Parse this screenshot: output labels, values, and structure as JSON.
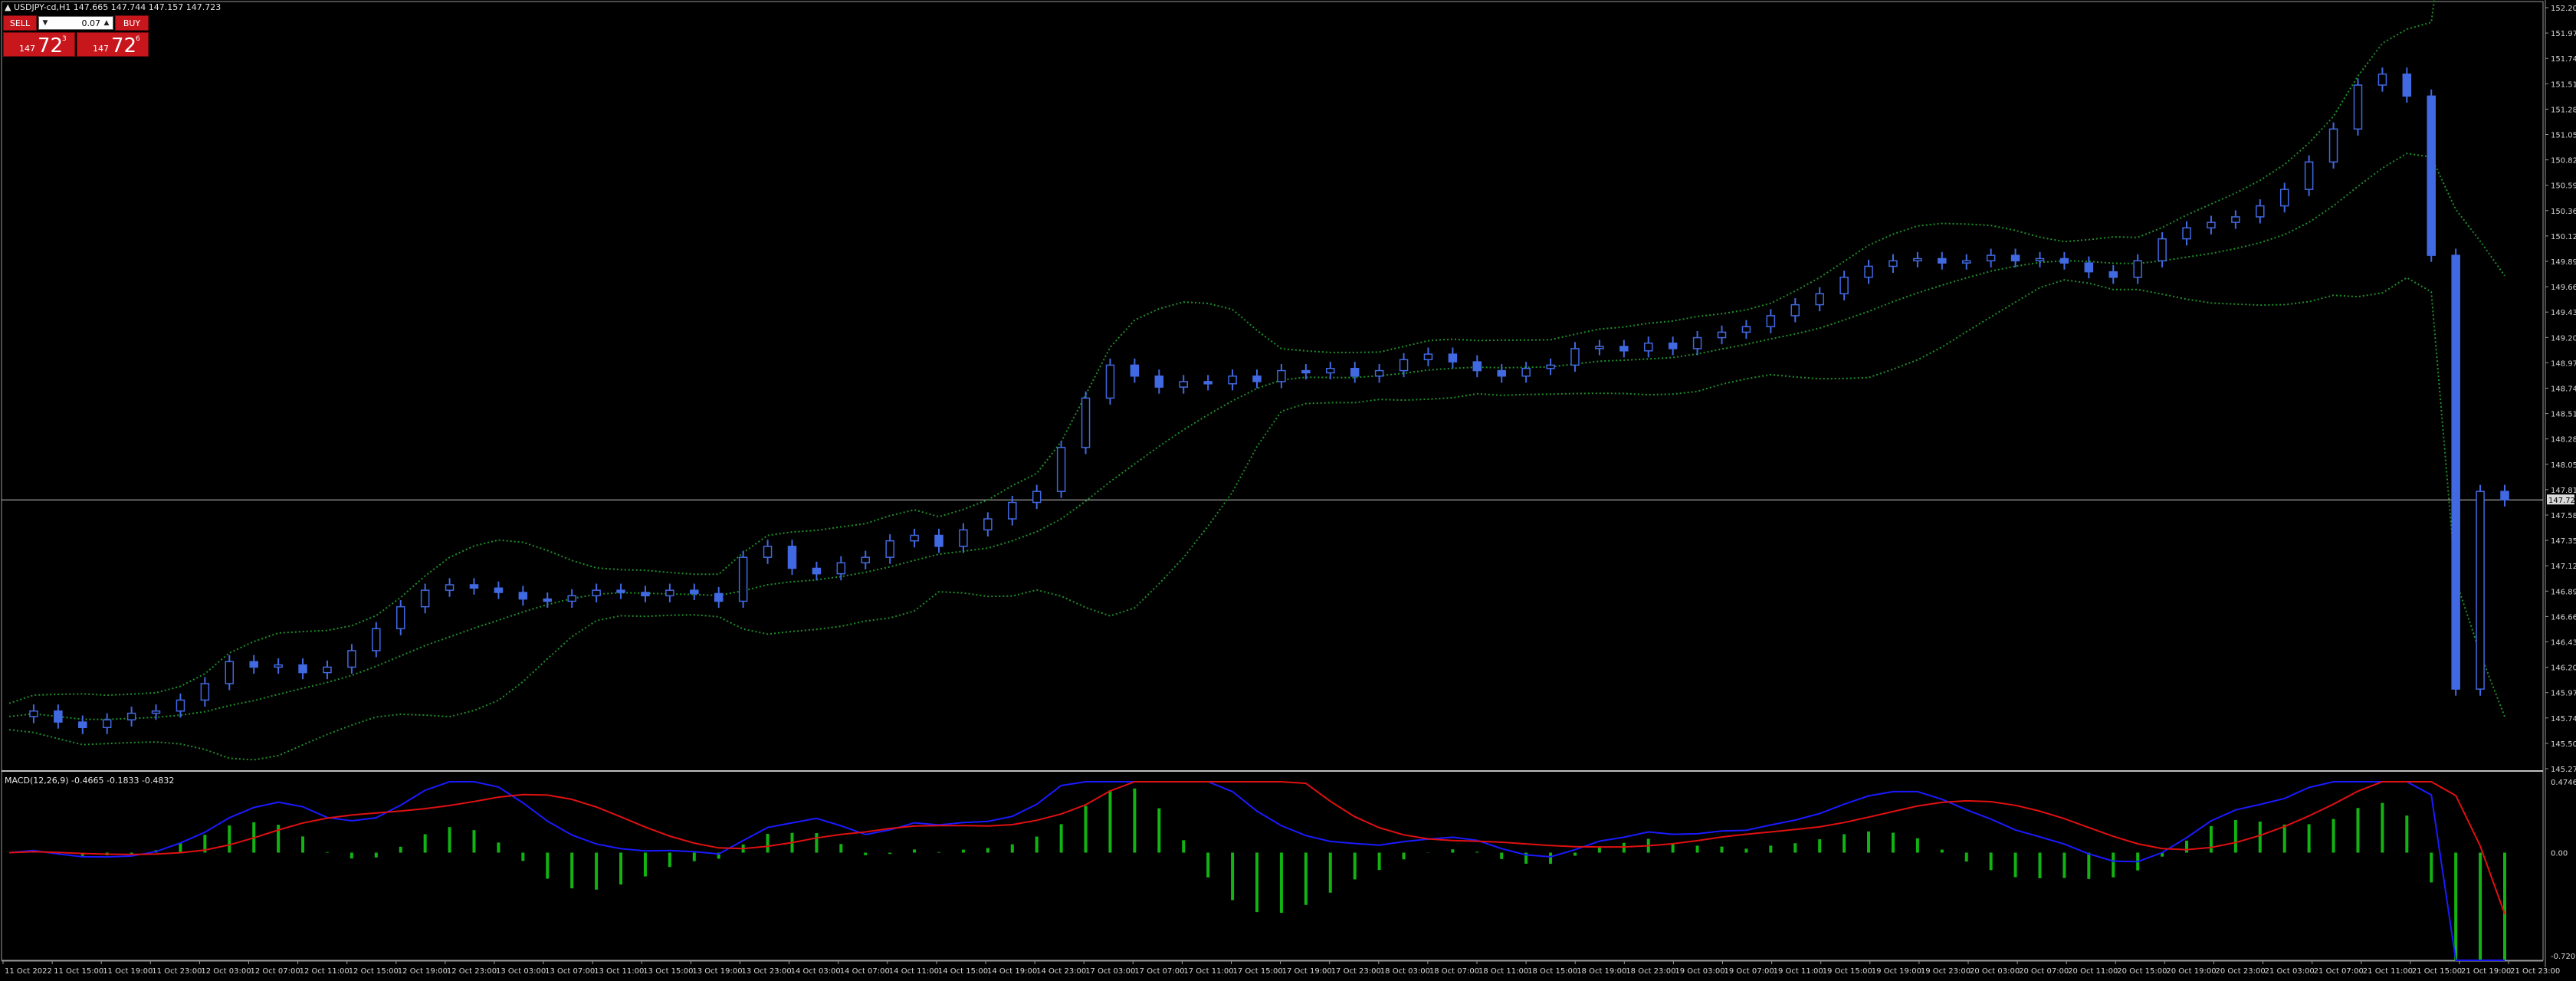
{
  "header": {
    "symbol_label": "▲ USDJPY-cd,H1  147.665 147.744 147.157 147.723"
  },
  "trade_panel": {
    "sell_label": "SELL",
    "buy_label": "BUY",
    "volume_value": "0.07",
    "bid_small": "147",
    "bid_big": "72",
    "bid_sup": "3",
    "ask_small": "147",
    "ask_big": "72",
    "ask_sup": "6"
  },
  "price_axis": {
    "labels": [
      "152.205",
      "151.975",
      "151.745",
      "151.515",
      "151.280",
      "151.050",
      "150.820",
      "150.590",
      "150.360",
      "150.125",
      "149.895",
      "149.665",
      "149.435",
      "149.205",
      "148.970",
      "148.740",
      "148.510",
      "148.280",
      "148.050",
      "147.815",
      "147.585",
      "147.355",
      "147.125",
      "146.895",
      "146.660",
      "146.430",
      "146.200",
      "145.970",
      "145.740",
      "145.505",
      "145.275"
    ],
    "current_price": "147.723"
  },
  "macd": {
    "label": "MACD(12,26,9) -0.4665 -0.1833 -0.4832",
    "axis_labels": [
      "0.4746",
      "0.00",
      "-0.7209"
    ]
  },
  "time_axis": {
    "labels": [
      "11 Oct 2022",
      "11 Oct 15:00",
      "11 Oct 19:00",
      "11 Oct 23:00",
      "12 Oct 03:00",
      "12 Oct 07:00",
      "12 Oct 11:00",
      "12 Oct 15:00",
      "12 Oct 19:00",
      "12 Oct 23:00",
      "13 Oct 03:00",
      "13 Oct 07:00",
      "13 Oct 11:00",
      "13 Oct 15:00",
      "13 Oct 19:00",
      "13 Oct 23:00",
      "14 Oct 03:00",
      "14 Oct 07:00",
      "14 Oct 11:00",
      "14 Oct 15:00",
      "14 Oct 19:00",
      "14 Oct 23:00",
      "17 Oct 03:00",
      "17 Oct 07:00",
      "17 Oct 11:00",
      "17 Oct 15:00",
      "17 Oct 19:00",
      "17 Oct 23:00",
      "18 Oct 03:00",
      "18 Oct 07:00",
      "18 Oct 11:00",
      "18 Oct 15:00",
      "18 Oct 19:00",
      "18 Oct 23:00",
      "19 Oct 03:00",
      "19 Oct 07:00",
      "19 Oct 11:00",
      "19 Oct 15:00",
      "19 Oct 19:00",
      "19 Oct 23:00",
      "20 Oct 03:00",
      "20 Oct 07:00",
      "20 Oct 11:00",
      "20 Oct 15:00",
      "20 Oct 19:00",
      "20 Oct 23:00",
      "21 Oct 03:00",
      "21 Oct 07:00",
      "21 Oct 11:00",
      "21 Oct 15:00",
      "21 Oct 19:00",
      "21 Oct 23:00"
    ]
  },
  "colors": {
    "background": "#000000",
    "candle": "#4169e1",
    "bollinger": "#1f8f2a",
    "macd_main": "#1a1aff",
    "macd_signal": "#e01010",
    "macd_hist": "#12b312",
    "grid_line": "#c8c8c8",
    "sell_buy": "#c8161d"
  },
  "chart_data": {
    "type": "candlestick",
    "symbol": "USDJPY-cd",
    "timeframe": "H1",
    "ylim": [
      145.275,
      152.205
    ],
    "current_price": 147.723,
    "price_path": [
      145.75,
      145.8,
      145.7,
      145.65,
      145.72,
      145.78,
      145.8,
      145.9,
      146.05,
      146.25,
      146.2,
      146.22,
      146.15,
      146.2,
      146.35,
      146.55,
      146.75,
      146.9,
      146.95,
      146.92,
      146.88,
      146.82,
      146.8,
      146.85,
      146.9,
      146.88,
      146.85,
      146.9,
      146.87,
      146.8,
      147.2,
      147.3,
      147.1,
      147.05,
      147.15,
      147.2,
      147.35,
      147.4,
      147.3,
      147.45,
      147.55,
      147.7,
      147.8,
      148.2,
      148.65,
      148.95,
      148.85,
      148.75,
      148.8,
      148.78,
      148.85,
      148.8,
      148.9,
      148.88,
      148.92,
      148.85,
      148.9,
      149.0,
      149.05,
      148.98,
      148.9,
      148.85,
      148.92,
      148.95,
      149.1,
      149.12,
      149.08,
      149.15,
      149.1,
      149.2,
      149.25,
      149.3,
      149.4,
      149.5,
      149.6,
      149.75,
      149.85,
      149.9,
      149.92,
      149.88,
      149.9,
      149.95,
      149.9,
      149.92,
      149.88,
      149.8,
      149.75,
      149.9,
      150.1,
      150.2,
      150.25,
      150.3,
      150.4,
      150.55,
      150.8,
      151.1,
      151.5,
      151.6,
      151.4,
      149.95,
      146.0,
      147.8,
      147.723
    ],
    "macd": {
      "ylim": [
        -0.7209,
        0.4746
      ],
      "main_last": -0.4665,
      "signal_last": -0.1833,
      "osma_last": -0.4832
    }
  }
}
